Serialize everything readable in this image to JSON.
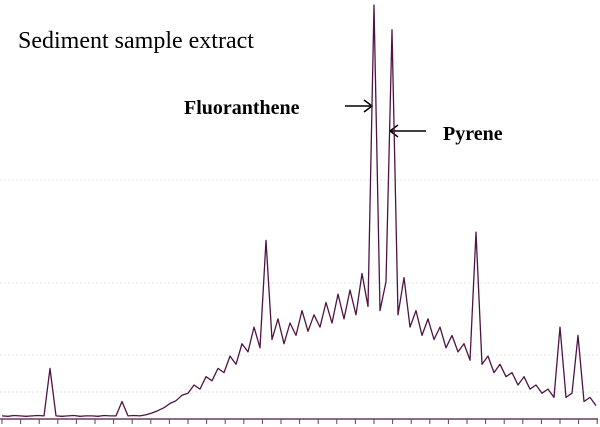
{
  "chart_data": {
    "type": "line",
    "title": "Sediment sample extract",
    "annotations": [
      "Fluoranthene",
      "Pyrene"
    ],
    "color": "#4e1444",
    "ylim": [
      0,
      100
    ],
    "values": [
      0.5,
      0.4,
      0.6,
      0.5,
      0.4,
      0.5,
      0.6,
      0.5,
      12,
      0.5,
      0.4,
      0.5,
      0.6,
      0.4,
      0.5,
      0.5,
      0.4,
      0.6,
      0.5,
      0.5,
      4,
      0.5,
      0.6,
      0.5,
      0.8,
      1.2,
      1.8,
      2.5,
      3.5,
      4.2,
      5.5,
      6,
      8,
      7,
      10,
      9,
      12,
      11,
      15,
      13,
      18,
      16,
      22,
      17,
      43,
      19,
      24,
      18,
      23,
      20,
      26,
      21,
      25,
      22,
      28,
      23,
      30,
      24,
      31,
      25,
      35,
      27,
      100,
      26,
      33,
      94,
      25,
      34,
      22,
      26,
      20,
      24,
      19,
      22,
      17,
      20,
      16,
      18,
      14,
      45,
      13,
      15,
      11,
      13,
      10,
      11,
      8,
      10,
      7,
      8,
      6,
      7,
      5,
      22,
      5,
      6,
      20,
      4,
      5,
      3
    ]
  }
}
